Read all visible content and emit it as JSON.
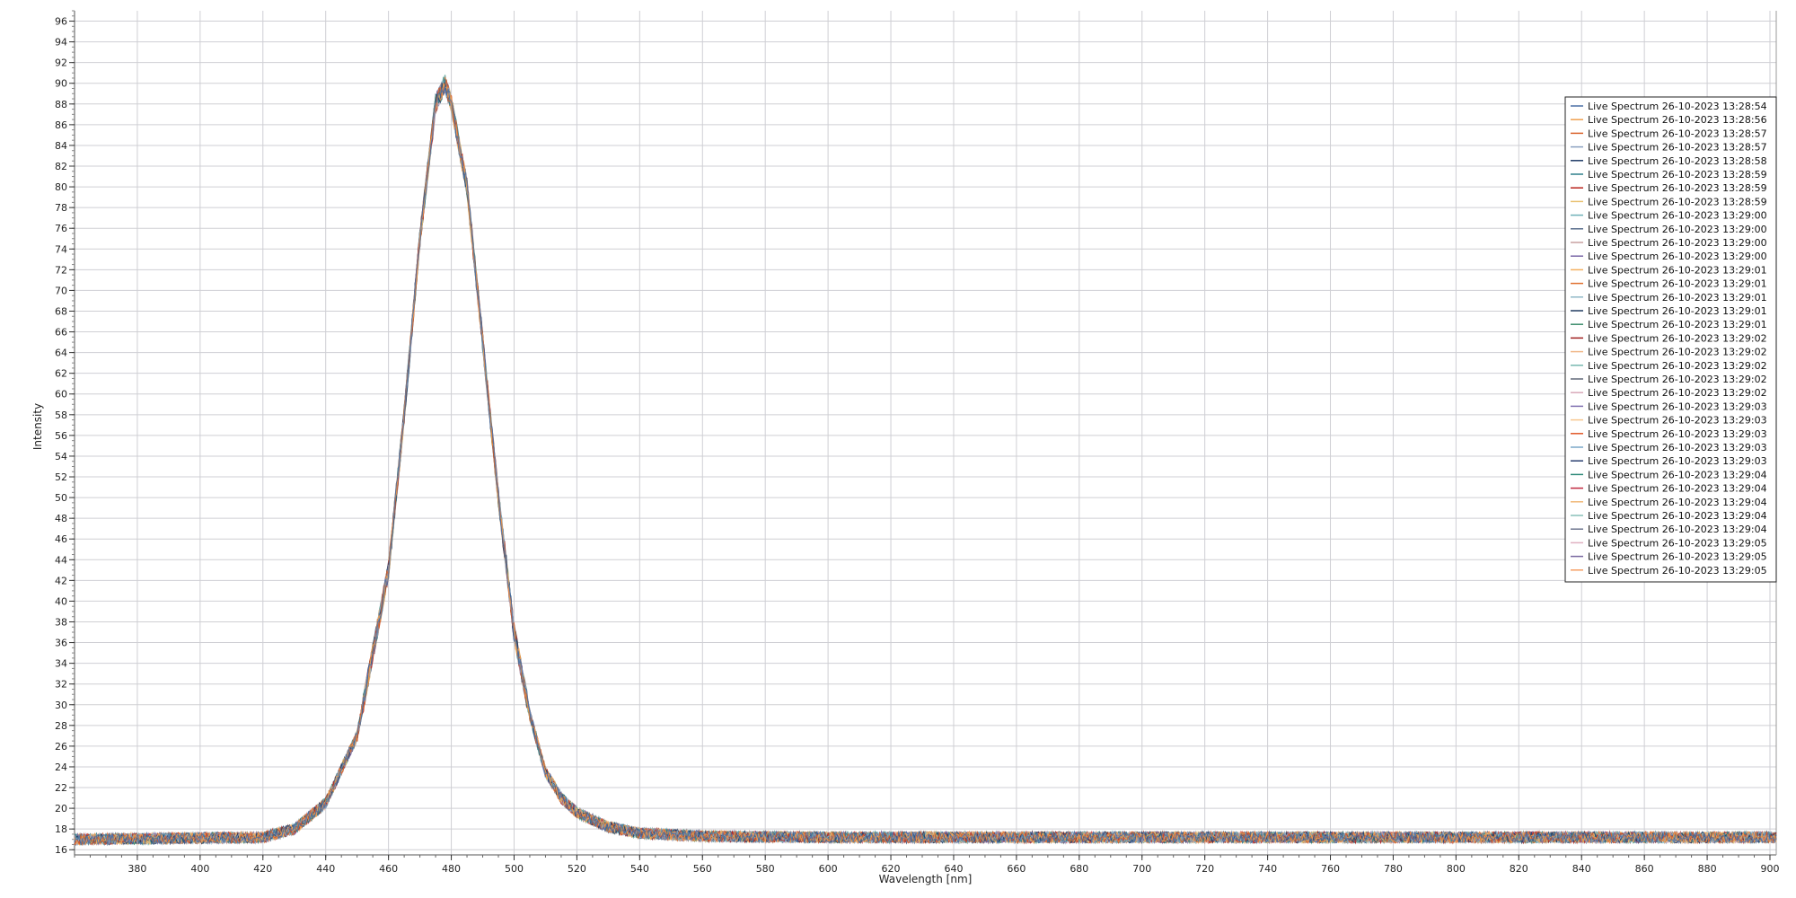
{
  "chart_data": {
    "type": "line",
    "xlabel": "Wavelength [nm]",
    "ylabel": "Intensity",
    "xlim": [
      360,
      902
    ],
    "ylim": [
      15.5,
      97
    ],
    "x_ticks": [
      380,
      400,
      420,
      440,
      460,
      480,
      500,
      520,
      540,
      560,
      580,
      600,
      620,
      640,
      660,
      680,
      700,
      720,
      740,
      760,
      780,
      800,
      820,
      840,
      860,
      880,
      900
    ],
    "y_ticks": [
      16,
      18,
      20,
      22,
      24,
      26,
      28,
      30,
      32,
      34,
      36,
      38,
      40,
      42,
      44,
      46,
      48,
      50,
      52,
      54,
      56,
      58,
      60,
      62,
      64,
      66,
      68,
      70,
      72,
      74,
      76,
      78,
      80,
      82,
      84,
      86,
      88,
      90,
      92,
      94,
      96
    ],
    "grid": true,
    "legend_position": "top-right",
    "profile": {
      "x": [
        360,
        420,
        430,
        440,
        450,
        460,
        465,
        470,
        475,
        478,
        480,
        485,
        490,
        495,
        500,
        505,
        510,
        515,
        520,
        530,
        540,
        560,
        600,
        700,
        800,
        902
      ],
      "y": [
        17,
        17.2,
        18,
        20.5,
        27,
        43,
        58,
        75,
        88,
        90,
        88,
        80,
        65,
        50,
        37,
        29,
        23.5,
        21,
        19.6,
        18.2,
        17.6,
        17.3,
        17.2,
        17.2,
        17.2,
        17.2
      ]
    },
    "series": [
      {
        "name": "Live Spectrum 26-10-2023 13:28:54",
        "color": "#4a6fa5"
      },
      {
        "name": "Live Spectrum 26-10-2023 13:28:56",
        "color": "#f0a050"
      },
      {
        "name": "Live Spectrum 26-10-2023 13:28:57",
        "color": "#d9622b"
      },
      {
        "name": "Live Spectrum 26-10-2023 13:28:57",
        "color": "#8aa0c0"
      },
      {
        "name": "Live Spectrum 26-10-2023 13:28:58",
        "color": "#1f3b66"
      },
      {
        "name": "Live Spectrum 26-10-2023 13:28:59",
        "color": "#2e7f8a"
      },
      {
        "name": "Live Spectrum 26-10-2023 13:28:59",
        "color": "#b8231c"
      },
      {
        "name": "Live Spectrum 26-10-2023 13:28:59",
        "color": "#e8c070"
      },
      {
        "name": "Live Spectrum 26-10-2023 13:29:00",
        "color": "#6fb0b8"
      },
      {
        "name": "Live Spectrum 26-10-2023 13:29:00",
        "color": "#5a6e8c"
      },
      {
        "name": "Live Spectrum 26-10-2023 13:29:00",
        "color": "#c8a0a0"
      },
      {
        "name": "Live Spectrum 26-10-2023 13:29:00",
        "color": "#7b68a8"
      },
      {
        "name": "Live Spectrum 26-10-2023 13:29:01",
        "color": "#f4b060"
      },
      {
        "name": "Live Spectrum 26-10-2023 13:29:01",
        "color": "#e07030"
      },
      {
        "name": "Live Spectrum 26-10-2023 13:29:01",
        "color": "#90b8c8"
      },
      {
        "name": "Live Spectrum 26-10-2023 13:29:01",
        "color": "#203a60"
      },
      {
        "name": "Live Spectrum 26-10-2023 13:29:01",
        "color": "#3c8c6c"
      },
      {
        "name": "Live Spectrum 26-10-2023 13:29:02",
        "color": "#a02020"
      },
      {
        "name": "Live Spectrum 26-10-2023 13:29:02",
        "color": "#f0b888"
      },
      {
        "name": "Live Spectrum 26-10-2023 13:29:02",
        "color": "#78b8b0"
      },
      {
        "name": "Live Spectrum 26-10-2023 13:29:02",
        "color": "#606878"
      },
      {
        "name": "Live Spectrum 26-10-2023 13:29:02",
        "color": "#d8a8b8"
      },
      {
        "name": "Live Spectrum 26-10-2023 13:29:03",
        "color": "#8070b0"
      },
      {
        "name": "Live Spectrum 26-10-2023 13:29:03",
        "color": "#f8c890"
      },
      {
        "name": "Live Spectrum 26-10-2023 13:29:03",
        "color": "#e05828"
      },
      {
        "name": "Live Spectrum 26-10-2023 13:29:03",
        "color": "#7aa8c8"
      },
      {
        "name": "Live Spectrum 26-10-2023 13:29:03",
        "color": "#2a3f70"
      },
      {
        "name": "Live Spectrum 26-10-2023 13:29:04",
        "color": "#2f8a7a"
      },
      {
        "name": "Live Spectrum 26-10-2023 13:29:04",
        "color": "#c02840"
      },
      {
        "name": "Live Spectrum 26-10-2023 13:29:04",
        "color": "#f0b878"
      },
      {
        "name": "Live Spectrum 26-10-2023 13:29:04",
        "color": "#88c0b8"
      },
      {
        "name": "Live Spectrum 26-10-2023 13:29:04",
        "color": "#707890"
      },
      {
        "name": "Live Spectrum 26-10-2023 13:29:05",
        "color": "#e0b0c0"
      },
      {
        "name": "Live Spectrum 26-10-2023 13:29:05",
        "color": "#7868a0"
      },
      {
        "name": "Live Spectrum 26-10-2023 13:29:05",
        "color": "#f5a065"
      }
    ]
  }
}
